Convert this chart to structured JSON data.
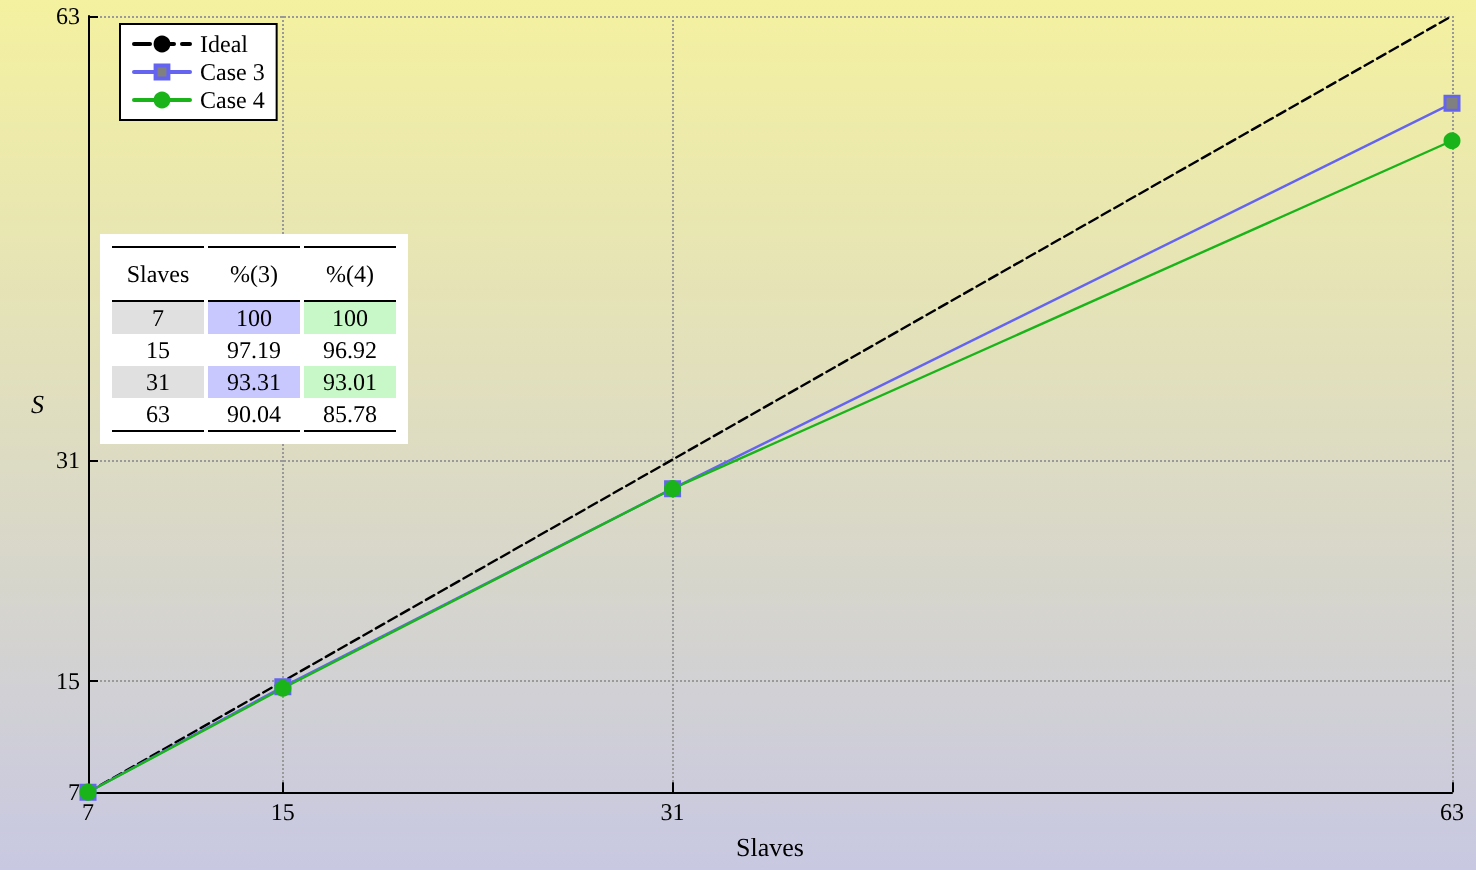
{
  "chart_data": {
    "type": "line",
    "xlabel": "Slaves",
    "ylabel": "S",
    "x": [
      7,
      15,
      31,
      63
    ],
    "series": [
      {
        "name": "Ideal",
        "color": "#000000",
        "values": [
          7,
          15,
          31,
          63
        ],
        "line_style": "dashed",
        "marker": "none"
      },
      {
        "name": "Case 3",
        "color": "#6464f0",
        "values": [
          7,
          14.6,
          28.9,
          56.7
        ],
        "line_style": "solid",
        "marker": "square"
      },
      {
        "name": "Case 4",
        "color": "#1ab41a",
        "values": [
          7,
          14.5,
          28.9,
          54.0
        ],
        "line_style": "solid",
        "marker": "circle"
      }
    ],
    "xlim": [
      7,
      63
    ],
    "ylim": [
      7,
      63
    ],
    "xticks": [
      7,
      15,
      31,
      63
    ],
    "yticks": [
      7,
      15,
      31,
      63
    ],
    "grid": true,
    "legend": "top left",
    "annotations": [
      "Slaves",
      "%(3)",
      "%(4)",
      "7",
      "100",
      "100",
      "15",
      "97.19",
      "96.92",
      "31",
      "93.31",
      "93.01",
      "63",
      "90.04",
      "85.78"
    ]
  }
}
